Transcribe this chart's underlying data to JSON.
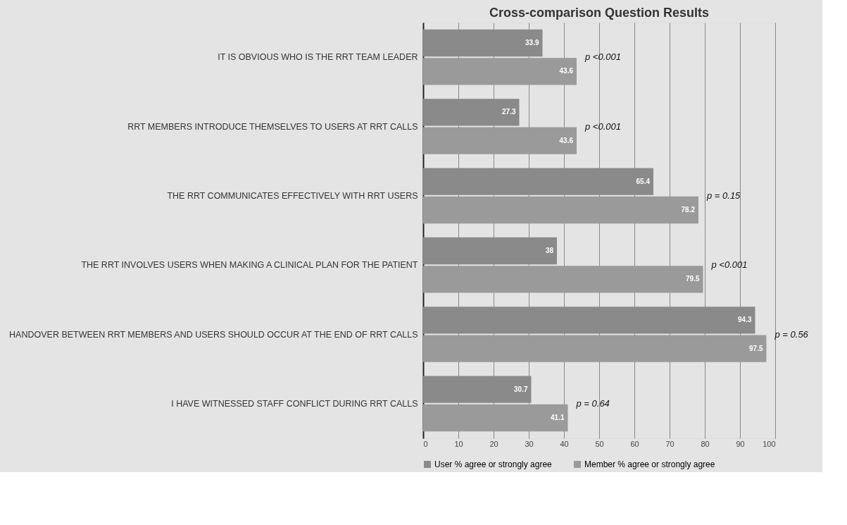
{
  "chart_data": {
    "type": "bar",
    "orientation": "horizontal",
    "title": "Cross-comparison Question Results",
    "categories": [
      "IT IS OBVIOUS WHO IS THE RRT TEAM LEADER",
      "RRT MEMBERS INTRODUCE THEMSELVES TO USERS AT RRT CALLS",
      "THE RRT COMMUNICATES EFFECTIVELY WITH RRT USERS",
      "THE RRT INVOLVES USERS WHEN MAKING  A CLINICAL PLAN FOR THE PATIENT",
      "HANDOVER BETWEEN RRT MEMBERS AND USERS SHOULD OCCUR AT THE END OF RRT CALLS",
      "I HAVE WITNESSED STAFF CONFLICT DURING RRT CALLS"
    ],
    "series": [
      {
        "name": "User % agree or strongly agree",
        "color": "#8a8a8a",
        "values": [
          33.9,
          27.3,
          65.4,
          38,
          94.3,
          30.7
        ]
      },
      {
        "name": "Member % agree or strongly agree",
        "color": "#9a9a9a",
        "values": [
          43.6,
          43.6,
          78.2,
          79.5,
          97.5,
          41.1
        ]
      }
    ],
    "xlim": [
      0,
      100
    ],
    "xticks": [
      0,
      10,
      20,
      30,
      40,
      50,
      60,
      70,
      80,
      90,
      100
    ],
    "grid": "x",
    "legend": "bottom",
    "data_labels": true,
    "annotations": [
      "p <0.001",
      "p <0.001",
      "p = 0.15",
      "p <0.001",
      "p = 0.56",
      "p = 0.64"
    ]
  }
}
